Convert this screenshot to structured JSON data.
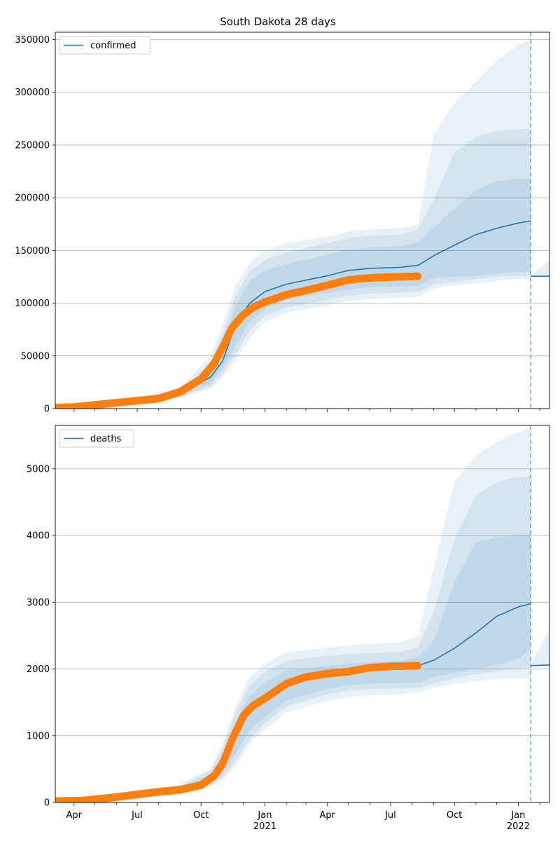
{
  "title": "South Dakota 28 days",
  "colors": {
    "model_line": "#1f77b4",
    "observed": "#ff7f0e",
    "band": "#1f77b4",
    "grid": "#b0b0b0",
    "vline": "#1f77b4"
  },
  "x_axis": {
    "range": [
      "2020-03-05",
      "2022-02-15"
    ],
    "major_ticks": [
      {
        "date": "2020-04-01",
        "label": "Apr",
        "sublabel": ""
      },
      {
        "date": "2020-07-01",
        "label": "Jul",
        "sublabel": ""
      },
      {
        "date": "2020-10-01",
        "label": "Oct",
        "sublabel": ""
      },
      {
        "date": "2021-01-01",
        "label": "Jan",
        "sublabel": "2021"
      },
      {
        "date": "2021-04-01",
        "label": "Apr",
        "sublabel": ""
      },
      {
        "date": "2021-07-01",
        "label": "Jul",
        "sublabel": ""
      },
      {
        "date": "2021-10-01",
        "label": "Oct",
        "sublabel": ""
      },
      {
        "date": "2022-01-01",
        "label": "Jan",
        "sublabel": "2022"
      }
    ],
    "forecast_date": "2022-01-19"
  },
  "chart_data": [
    {
      "type": "line",
      "legend": "confirmed",
      "legend_position": "top-left",
      "grid": "horizontal",
      "ylim": [
        0,
        357000
      ],
      "yticks": [
        0,
        50000,
        100000,
        150000,
        200000,
        250000,
        300000,
        350000
      ],
      "ytick_labels": [
        "0",
        "50000",
        "100000",
        "150000",
        "200000",
        "250000",
        "300000",
        "350000"
      ],
      "model": {
        "dates": [
          "2020-03-05",
          "2020-06-01",
          "2020-09-01",
          "2020-10-15",
          "2020-11-01",
          "2020-11-20",
          "2020-12-10",
          "2021-01-01",
          "2021-02-01",
          "2021-04-01",
          "2021-05-01",
          "2021-06-01",
          "2021-07-15",
          "2021-08-10",
          "2021-09-01",
          "2021-10-01",
          "2021-11-01",
          "2021-12-01",
          "2022-01-01",
          "2022-01-19"
        ],
        "values": [
          1000,
          5000,
          14000,
          30000,
          45000,
          80000,
          100000,
          111000,
          118000,
          126000,
          131000,
          133000,
          134000,
          136000,
          145000,
          155000,
          165000,
          171000,
          176000,
          178000
        ]
      },
      "observed": {
        "dates": [
          "2020-03-05",
          "2020-04-01",
          "2020-06-01",
          "2020-08-01",
          "2020-09-01",
          "2020-10-01",
          "2020-10-20",
          "2020-11-01",
          "2020-11-15",
          "2020-12-01",
          "2020-12-15",
          "2021-01-01",
          "2021-02-01",
          "2021-03-01",
          "2021-04-01",
          "2021-05-01",
          "2021-06-01",
          "2021-07-01",
          "2021-08-10"
        ],
        "values": [
          1000,
          1500,
          5500,
          9500,
          16000,
          28000,
          43000,
          58000,
          77000,
          89000,
          96000,
          101000,
          108000,
          112000,
          117000,
          122000,
          124000,
          124800,
          125500
        ]
      },
      "bands": [
        {
          "lower": [
            1000,
            4500,
            12000,
            24000,
            38000,
            60000,
            82000,
            95000,
            103000,
            110000,
            113000,
            115000,
            116000,
            116500,
            124000,
            125000,
            126000,
            128000,
            130000,
            130000
          ],
          "upper": [
            1000,
            5500,
            16000,
            38000,
            60000,
            98000,
            121000,
            131000,
            137000,
            146000,
            151000,
            153000,
            154000,
            158000,
            171000,
            190000,
            207000,
            216000,
            218000,
            218000
          ]
        },
        {
          "lower": [
            1000,
            4200,
            11000,
            21000,
            33000,
            52000,
            74000,
            88000,
            96000,
            103000,
            107000,
            109000,
            110000,
            110500,
            118000,
            120000,
            123000,
            125000,
            126000,
            126000
          ],
          "upper": [
            1000,
            6000,
            18000,
            44000,
            70000,
            108000,
            130000,
            141000,
            148000,
            157000,
            162000,
            164000,
            165000,
            170000,
            198000,
            243000,
            258000,
            263000,
            265000,
            265000
          ]
        },
        {
          "lower": [
            1000,
            4000,
            10500,
            19000,
            30000,
            46000,
            67000,
            82000,
            91000,
            98000,
            102000,
            104000,
            105000,
            106000,
            114000,
            117000,
            119000,
            121000,
            123000,
            123000
          ],
          "upper": [
            1000,
            6500,
            20000,
            50000,
            80000,
            117000,
            138000,
            150000,
            157000,
            163000,
            168000,
            170000,
            171000,
            175000,
            260000,
            290000,
            310000,
            330000,
            345000,
            350000
          ]
        }
      ],
      "post_forecast": {
        "dates": [
          "2022-01-19",
          "2022-02-15"
        ],
        "values": [
          125500,
          125500
        ],
        "band_lower": [
          125000,
          125000
        ],
        "band_upper": [
          126000,
          141000
        ]
      }
    },
    {
      "type": "line",
      "legend": "deaths",
      "legend_position": "top-left",
      "grid": "horizontal",
      "ylim": [
        0,
        5650
      ],
      "yticks": [
        0,
        1000,
        2000,
        3000,
        4000,
        5000
      ],
      "ytick_labels": [
        "0",
        "1000",
        "2000",
        "3000",
        "4000",
        "5000"
      ],
      "model": {
        "dates": [
          "2020-03-05",
          "2020-06-01",
          "2020-09-01",
          "2020-10-15",
          "2020-11-01",
          "2020-11-20",
          "2020-12-10",
          "2021-01-01",
          "2021-02-01",
          "2021-04-01",
          "2021-05-01",
          "2021-06-01",
          "2021-07-15",
          "2021-08-10",
          "2021-09-01",
          "2021-10-01",
          "2021-11-01",
          "2021-12-01",
          "2022-01-01",
          "2022-01-19"
        ],
        "values": [
          20,
          90,
          190,
          350,
          560,
          950,
          1380,
          1550,
          1790,
          1920,
          1960,
          2000,
          2030,
          2050,
          2130,
          2310,
          2540,
          2790,
          2930,
          2980
        ]
      },
      "observed": {
        "dates": [
          "2020-03-05",
          "2020-04-15",
          "2020-06-01",
          "2020-08-01",
          "2020-09-01",
          "2020-10-01",
          "2020-10-20",
          "2020-11-01",
          "2020-11-15",
          "2020-12-01",
          "2020-12-15",
          "2021-01-01",
          "2021-02-01",
          "2021-03-01",
          "2021-04-01",
          "2021-05-01",
          "2021-06-01",
          "2021-07-01",
          "2021-08-10"
        ],
        "values": [
          20,
          30,
          80,
          160,
          190,
          260,
          400,
          580,
          950,
          1300,
          1450,
          1560,
          1780,
          1880,
          1930,
          1960,
          2020,
          2040,
          2050
        ]
      },
      "bands": [
        {
          "lower": [
            20,
            80,
            170,
            290,
            440,
            730,
            1080,
            1280,
            1530,
            1700,
            1760,
            1780,
            1790,
            1800,
            1880,
            1940,
            2000,
            2060,
            2150,
            2300
          ],
          "upper": [
            20,
            100,
            220,
            420,
            700,
            1200,
            1600,
            1800,
            1970,
            2050,
            2080,
            2100,
            2120,
            2180,
            2420,
            3300,
            3900,
            3970,
            4000,
            4020
          ]
        },
        {
          "lower": [
            20,
            75,
            160,
            260,
            380,
            620,
            950,
            1180,
            1440,
            1620,
            1680,
            1700,
            1710,
            1720,
            1780,
            1860,
            1920,
            1970,
            2010,
            2020
          ],
          "upper": [
            20,
            110,
            250,
            480,
            800,
            1350,
            1750,
            1960,
            2120,
            2200,
            2220,
            2240,
            2250,
            2330,
            2850,
            3950,
            4600,
            4800,
            4880,
            4890
          ]
        },
        {
          "lower": [
            20,
            70,
            150,
            240,
            340,
            550,
            880,
            1100,
            1350,
            1520,
            1580,
            1600,
            1620,
            1650,
            1720,
            1780,
            1820,
            1850,
            1860,
            1860
          ],
          "upper": [
            20,
            120,
            270,
            520,
            880,
            1450,
            1870,
            2080,
            2250,
            2320,
            2350,
            2380,
            2400,
            2500,
            3500,
            4800,
            5200,
            5400,
            5550,
            5620
          ]
        }
      ],
      "post_forecast": {
        "dates": [
          "2022-01-19",
          "2022-02-15"
        ],
        "values": [
          2050,
          2060
        ],
        "band_lower": [
          2045,
          2050
        ],
        "band_upper": [
          2060,
          2600
        ]
      }
    }
  ]
}
